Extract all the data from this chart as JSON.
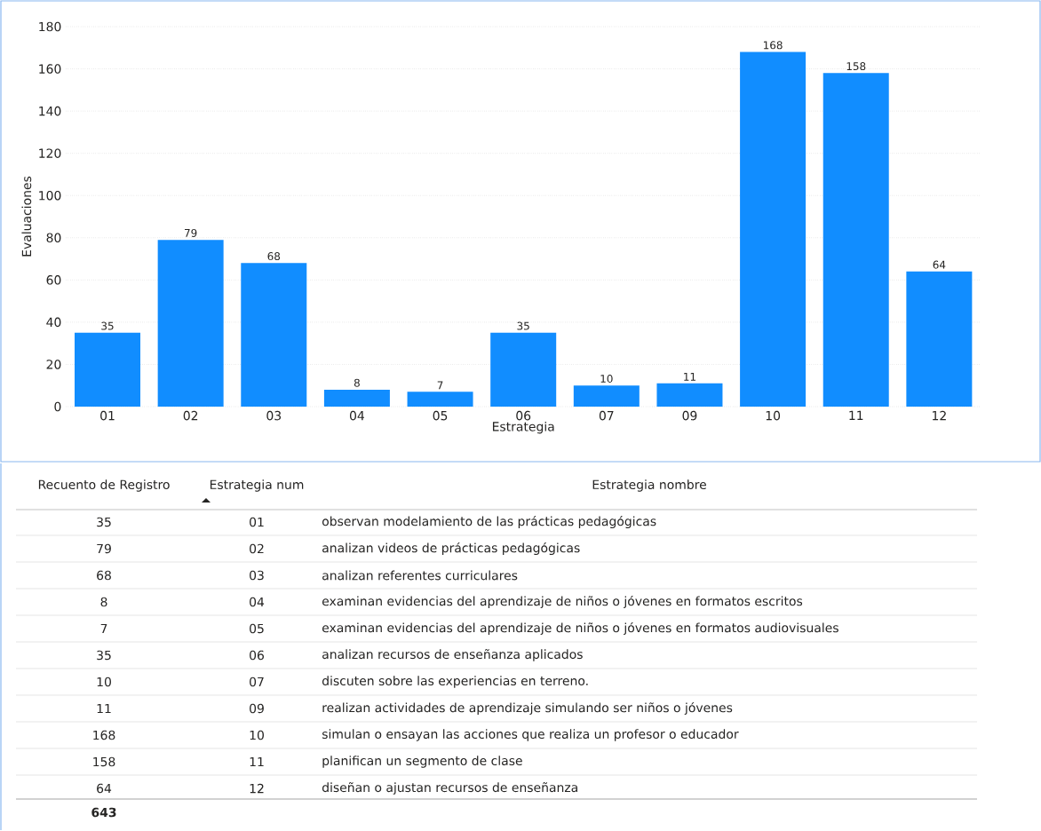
{
  "chart_data": {
    "type": "bar",
    "xlabel": "Estrategia",
    "ylabel": "Evaluaciones",
    "categories": [
      "01",
      "02",
      "03",
      "04",
      "05",
      "06",
      "07",
      "09",
      "10",
      "11",
      "12"
    ],
    "values": [
      35,
      79,
      68,
      8,
      7,
      35,
      10,
      11,
      168,
      158,
      64
    ],
    "color": "#118dff",
    "ylim": [
      0,
      180
    ],
    "yticks": [
      0,
      20,
      40,
      60,
      80,
      100,
      120,
      140,
      160,
      180
    ],
    "grid": "y",
    "data_labels": true,
    "annotations": [
      "Recuento de Registro",
      "Estrategia num",
      "Estrategia nombre",
      "35",
      "79",
      "68",
      "8",
      "7",
      "35",
      "10",
      "11",
      "168",
      "158",
      "64",
      "observan modelamiento de las prácticas pedagógicas",
      "analizan videos de prácticas pedagógicas",
      "analizan referentes curriculares",
      "examinan evidencias del aprendizaje de niños o jóvenes en formatos escritos",
      "examinan evidencias del aprendizaje de niños o jóvenes en formatos audiovisuales",
      "analizan recursos de enseñanza aplicados",
      "discuten sobre las experiencias en terreno.",
      "realizan actividades de aprendizaje simulando ser niños o jóvenes",
      "simulan o ensayan las acciones que realiza un profesor o educador",
      "planifican un segmento de clase",
      "diseñan o ajustan recursos de enseñanza",
      "643"
    ]
  }
}
